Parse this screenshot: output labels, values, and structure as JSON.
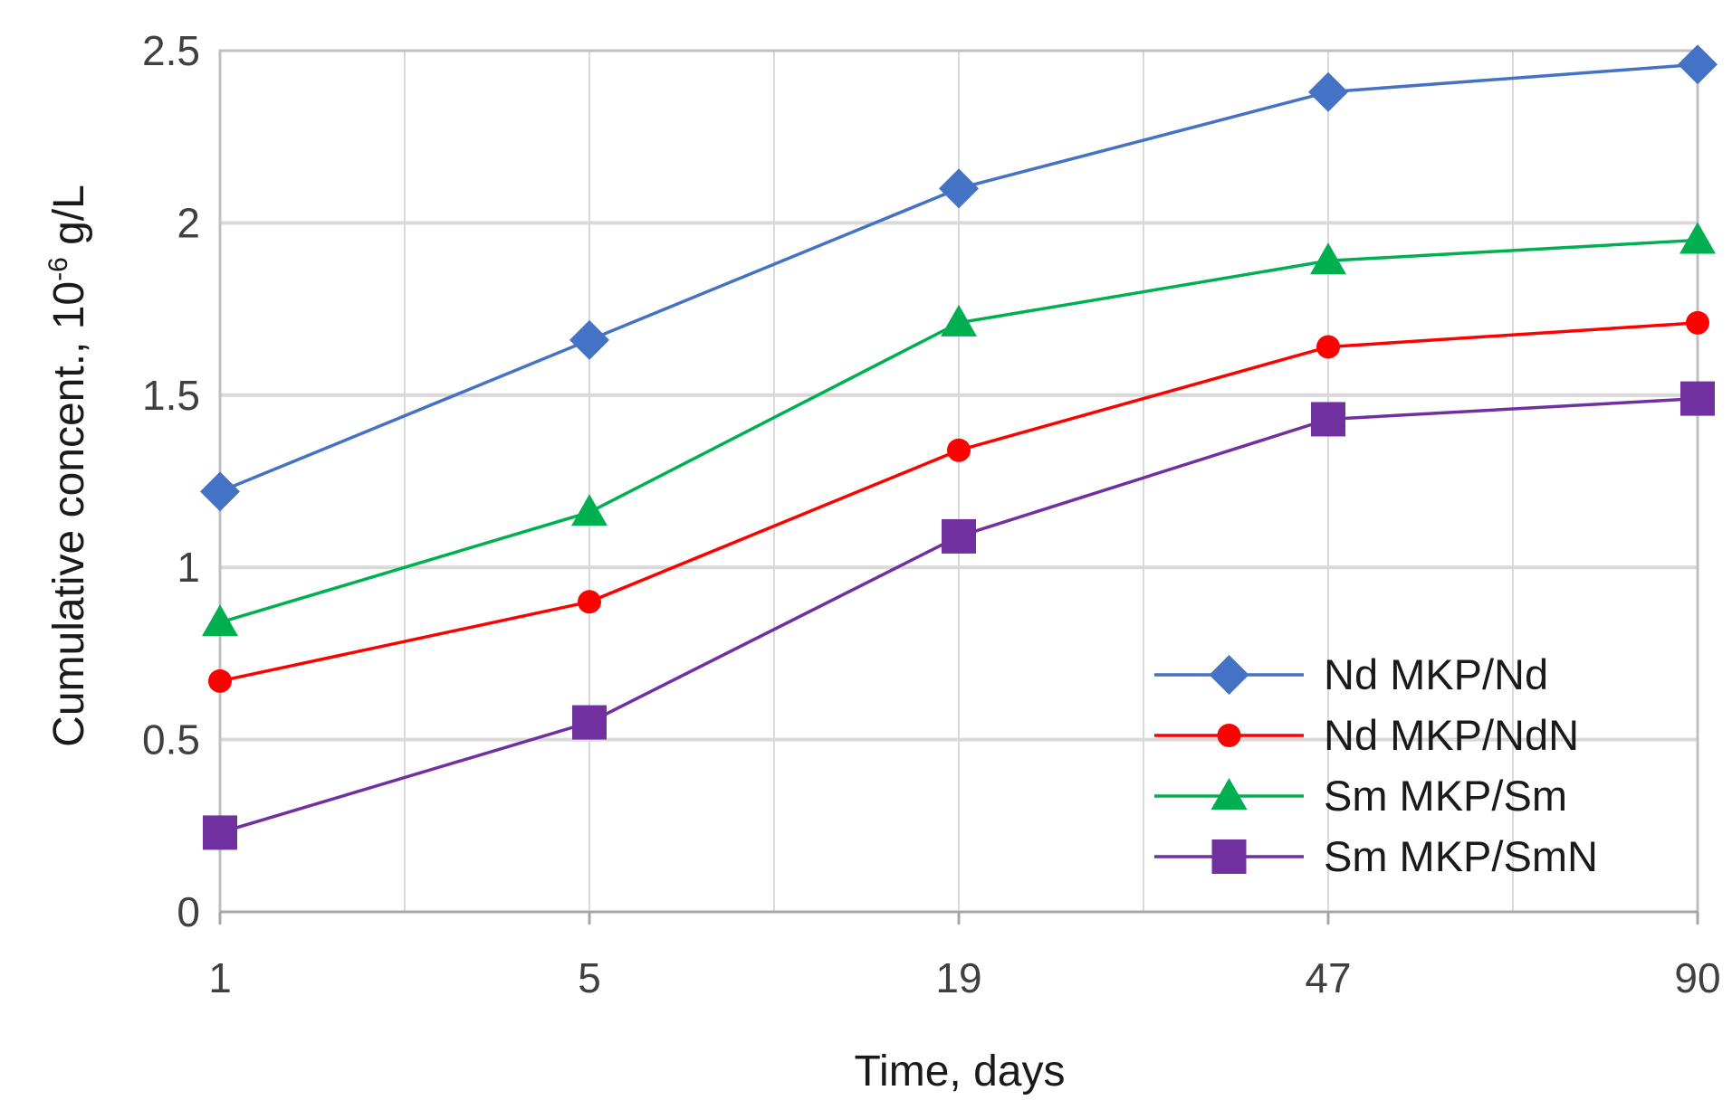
{
  "chart_data": {
    "type": "line",
    "title": "",
    "xlabel": "Time, days",
    "ylabel": {
      "prefix": "Cumulative concent., 10",
      "superscript": "-6",
      "suffix": " g/L"
    },
    "x_axis_kind": "category",
    "categories": [
      "1",
      "5",
      "19",
      "47",
      "90"
    ],
    "ylim": [
      0,
      2.5
    ],
    "yticks": [
      "0",
      "0.5",
      "1",
      "1.5",
      "2",
      "2.5"
    ],
    "grid": true,
    "legend_position": "bottom-right",
    "series": [
      {
        "name": "Nd  MKP/Nd",
        "color": "#4472C4",
        "marker": "diamond",
        "values": [
          1.22,
          1.66,
          2.1,
          2.38,
          2.46
        ]
      },
      {
        "name": "Nd  MKP/NdN",
        "color": "#FF0000",
        "marker": "circle",
        "values": [
          0.67,
          0.9,
          1.34,
          1.64,
          1.71
        ]
      },
      {
        "name": "Sm  MKP/Sm",
        "color": "#00B050",
        "marker": "triangle",
        "values": [
          0.84,
          1.16,
          1.71,
          1.89,
          1.95
        ]
      },
      {
        "name": "Sm  MKP/SmN",
        "color": "#7030A0",
        "marker": "square",
        "values": [
          0.23,
          0.55,
          1.09,
          1.43,
          1.49
        ]
      }
    ]
  }
}
